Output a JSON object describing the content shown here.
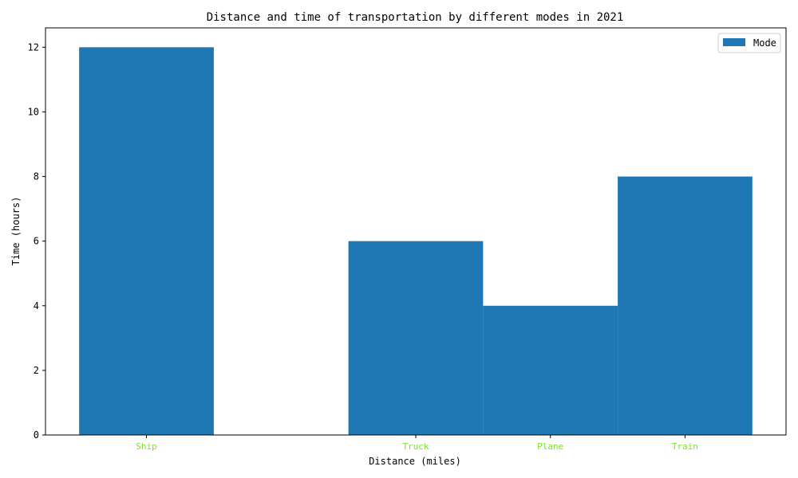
{
  "chart_data": {
    "type": "bar",
    "title": "Distance and time of transportation by different modes in 2021",
    "xlabel": "Distance (miles)",
    "ylabel": "Time (hours)",
    "categories": [
      "Ship",
      "Truck",
      "Plane",
      "Train"
    ],
    "x_positions": [
      1,
      3,
      4,
      5
    ],
    "xlim": [
      0.25,
      5.75
    ],
    "values": [
      12,
      6,
      4,
      8
    ],
    "ylim": [
      0,
      12.6
    ],
    "yticks": [
      "0",
      "2",
      "4",
      "6",
      "8",
      "10",
      "12"
    ],
    "series": [
      {
        "name": "Mode",
        "values": [
          12,
          6,
          4,
          8
        ]
      }
    ],
    "legend_position": "top-right",
    "grid": false,
    "colors": {
      "bar": "#1f77b4",
      "xtick_label": "#7fe030",
      "axis": "#000000"
    }
  }
}
